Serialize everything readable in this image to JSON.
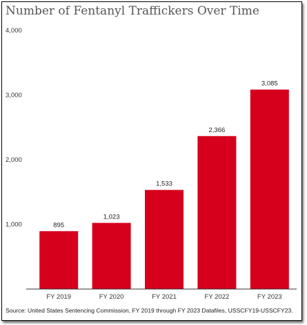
{
  "colors": {
    "bar": "#d6001c",
    "axis": "#333333"
  },
  "chart_data": {
    "type": "bar",
    "title": "Number of Fentanyl Traffickers Over Time",
    "source": "Source: United States Sentencing Commission, FY 2019 through FY 2023 Datafiles, USSCFY19-USSCFY23.",
    "categories": [
      "FY 2019",
      "FY 2020",
      "FY 2021",
      "FY 2022",
      "FY 2023"
    ],
    "values": [
      895,
      1023,
      1533,
      2366,
      3085
    ],
    "data_labels": [
      "895",
      "1,023",
      "1,533",
      "2,366",
      "3,085"
    ],
    "ylim": [
      0,
      4000
    ],
    "yticks": [
      1000,
      2000,
      3000,
      4000
    ],
    "ytick_labels": [
      "1,000",
      "2,000",
      "3,000",
      "4,000"
    ],
    "xlabel": "",
    "ylabel": "",
    "grid": false,
    "legend": "none"
  }
}
